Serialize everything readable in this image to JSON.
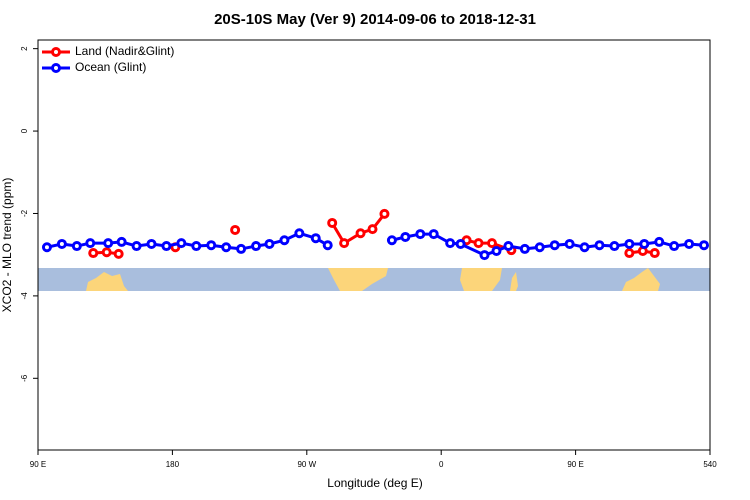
{
  "chart_data": {
    "type": "line",
    "title": "20S-10S May (Ver 9)   2014-09-06 to 2018-12-31",
    "x_label": "Longitude (deg E)",
    "y_label": "XCO2 - MLO trend (ppm)",
    "xlim": [
      90,
      540
    ],
    "ylim": [
      -7.74,
      2.21
    ],
    "xticks": [
      {
        "value": 90,
        "label": "90 E"
      },
      180,
      {
        "value": 270,
        "label": "90 W"
      },
      {
        "value": 360,
        "label": "0"
      },
      {
        "value": 450,
        "label": "90 E"
      },
      540
    ],
    "yticks": [
      2,
      0,
      -2,
      -4,
      -6
    ],
    "legend": "top-left",
    "series": [
      {
        "name": "Land (Nadir&Glint)",
        "color": "#ff0000",
        "x": [
          127,
          136,
          144,
          null,
          182,
          null,
          222,
          null,
          287,
          295,
          306,
          314,
          322,
          null,
          377,
          385,
          394,
          407,
          null,
          486,
          495,
          503
        ],
        "values": [
          -2.96,
          -2.94,
          -2.98,
          null,
          -2.82,
          null,
          -2.4,
          null,
          -2.23,
          -2.72,
          -2.48,
          -2.38,
          -2.01,
          null,
          -2.65,
          -2.72,
          -2.72,
          -2.89,
          null,
          -2.96,
          -2.91,
          -2.96
        ]
      },
      {
        "name": "Ocean (Glint)",
        "color": "#0000ff",
        "x": [
          96,
          106,
          116,
          125,
          137,
          146,
          156,
          166,
          176,
          186,
          196,
          206,
          216,
          226,
          236,
          245,
          255,
          265,
          276,
          284,
          null,
          327,
          336,
          346,
          355,
          366,
          373,
          389,
          397,
          405,
          416,
          426,
          436,
          446,
          456,
          466,
          476,
          486,
          496,
          506,
          516,
          526,
          536
        ],
        "values": [
          -2.82,
          -2.74,
          -2.79,
          -2.72,
          -2.72,
          -2.69,
          -2.79,
          -2.74,
          -2.79,
          -2.72,
          -2.79,
          -2.77,
          -2.82,
          -2.86,
          -2.79,
          -2.74,
          -2.65,
          -2.48,
          -2.6,
          -2.77,
          null,
          -2.65,
          -2.57,
          -2.5,
          -2.5,
          -2.72,
          -2.74,
          -3.01,
          -2.91,
          -2.79,
          -2.86,
          -2.82,
          -2.77,
          -2.74,
          -2.82,
          -2.77,
          -2.79,
          -2.74,
          -2.74,
          -2.69,
          -2.79,
          -2.74,
          -2.77
        ]
      }
    ]
  }
}
